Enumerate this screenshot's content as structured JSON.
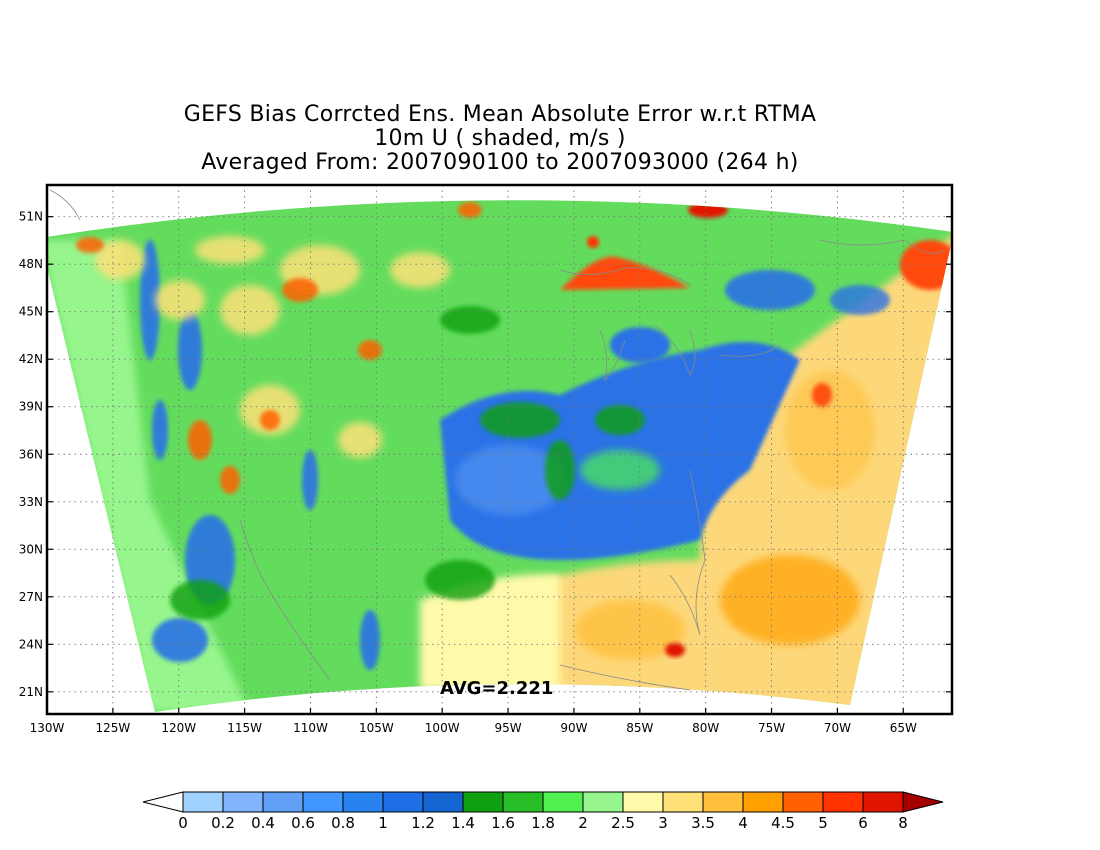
{
  "title": {
    "line1": "GEFS Bias Corrcted Ens. Mean Absolute Error w.r.t RTMA",
    "line2": "10m U ( shaded, m/s )",
    "line3": "Averaged From: 2007090100 to 2007093000 (264 h)"
  },
  "avg_label": "AVG=2.221",
  "lat_labels": [
    "51N",
    "48N",
    "45N",
    "42N",
    "39N",
    "36N",
    "33N",
    "30N",
    "27N",
    "24N",
    "21N"
  ],
  "lon_labels": [
    "130W",
    "125W",
    "120W",
    "115W",
    "110W",
    "105W",
    "100W",
    "95W",
    "90W",
    "85W",
    "80W",
    "75W",
    "70W",
    "65W"
  ],
  "colorbar": {
    "levels": [
      "0",
      "0.2",
      "0.4",
      "0.6",
      "0.8",
      "1",
      "1.2",
      "1.4",
      "1.6",
      "1.8",
      "2",
      "2.5",
      "3",
      "3.5",
      "4",
      "4.5",
      "5",
      "6",
      "8"
    ],
    "colors": [
      "#a0d2ff",
      "#80b4ff",
      "#60a0f5",
      "#4196ff",
      "#2882f0",
      "#1e6ee6",
      "#1464d2",
      "#0fa00f",
      "#28be28",
      "#50f050",
      "#96f58c",
      "#fffaaa",
      "#ffe178",
      "#ffc03c",
      "#ffa000",
      "#ff6000",
      "#ff3200",
      "#e11400",
      "#a50000"
    ]
  },
  "colors": {
    "ocean_east": "#fdd87a",
    "land_green": "#50d450",
    "low_error_blue": "#2a72e6",
    "high_error_red": "#ff4a10"
  }
}
